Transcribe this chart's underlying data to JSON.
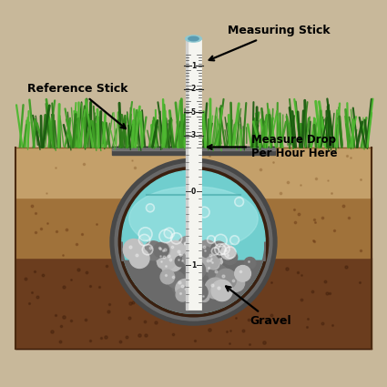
{
  "background_color": "#C8B89A",
  "labels": {
    "measuring_stick": "Measuring Stick",
    "reference_stick": "Reference Stick",
    "measure_drop": "Measure Drop\nPer Hour Here",
    "gravel": "Gravel"
  },
  "colors": {
    "background": "#C8B89A",
    "soil_sandy": "#C4A06A",
    "soil_mid": "#A0723A",
    "soil_dark": "#6B3D1E",
    "soil_dark2": "#7B4A2D",
    "grass_dark": "#1A5C0F",
    "grass_mid": "#2E7D1A",
    "grass_light": "#3E9E25",
    "grass_bright": "#4DB830",
    "water_light": "#A8E8E8",
    "water_mid": "#70CECE",
    "water_dark": "#4AACAC",
    "gravel_dark": "#707070",
    "gravel_mid": "#909090",
    "gravel_light": "#B8B8B8",
    "metal_dark": "#484848",
    "metal_mid": "#686868",
    "metal_light": "#909090",
    "stick_white": "#F5F5F0",
    "stick_edge": "#C8C8C0",
    "text_color": "#000000"
  }
}
